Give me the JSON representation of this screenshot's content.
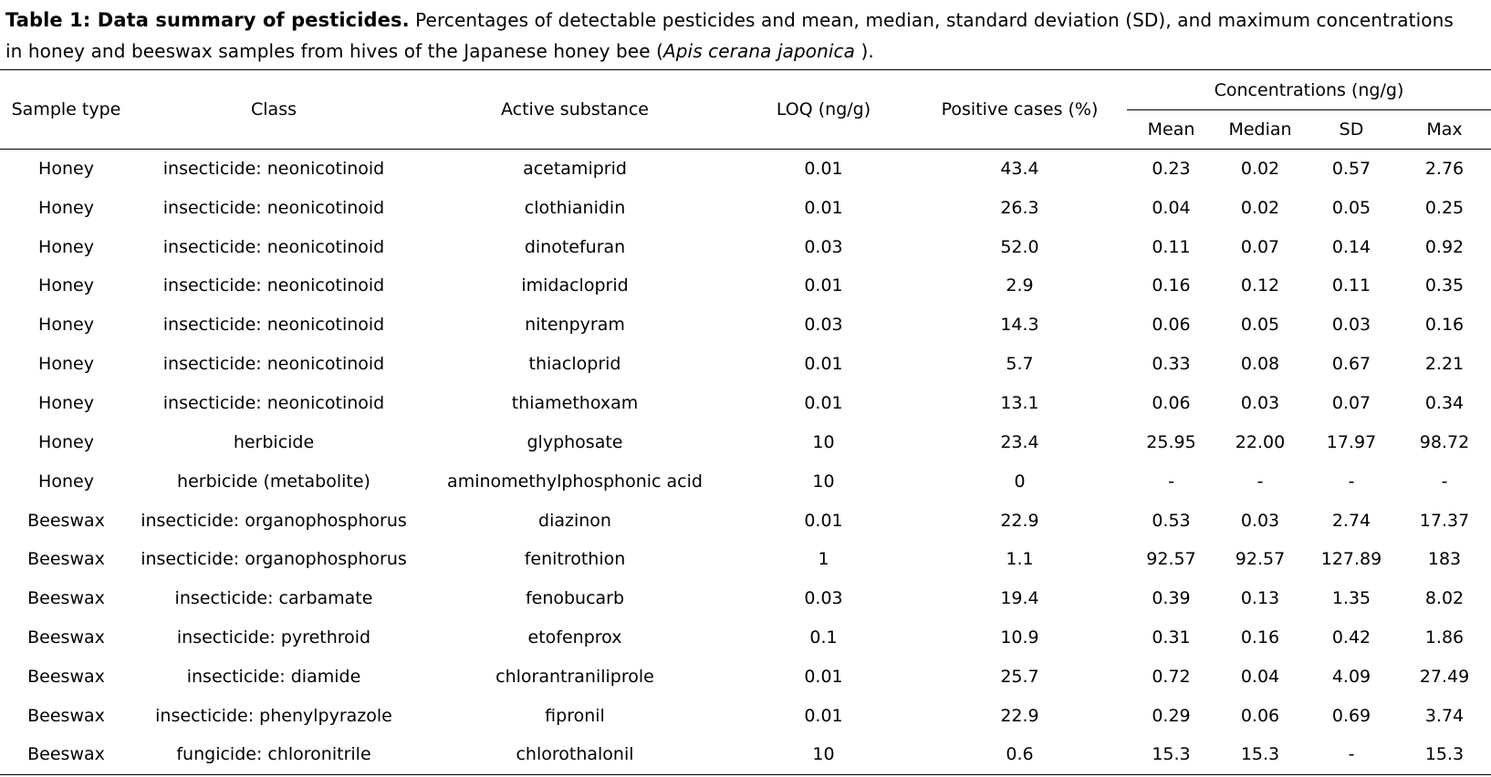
{
  "caption": {
    "title": "Table 1: Data summary of pesticides.",
    "line1_rest": " Percentages of detectable pesticides and mean, median, standard deviation (SD), and maximum concentrations",
    "line2_pre": "in honey and beeswax samples from hives of the Japanese honey bee (",
    "species": "Apis cerana japonica",
    "line2_post": " )."
  },
  "table": {
    "columns": {
      "sample_type": "Sample type",
      "class": "Class",
      "active_substance": "Active substance",
      "loq": "LOQ (ng/g)",
      "positive_cases": "Positive cases (%)"
    },
    "concentration_group": {
      "label": "Concentrations (ng/g)",
      "subcolumns": {
        "mean": "Mean",
        "median": "Median",
        "sd": "SD",
        "max": "Max"
      }
    },
    "rows": [
      [
        "Honey",
        "insecticide: neonicotinoid",
        "acetamiprid",
        "0.01",
        "43.4",
        "0.23",
        "0.02",
        "0.57",
        "2.76"
      ],
      [
        "Honey",
        "insecticide: neonicotinoid",
        "clothianidin",
        "0.01",
        "26.3",
        "0.04",
        "0.02",
        "0.05",
        "0.25"
      ],
      [
        "Honey",
        "insecticide: neonicotinoid",
        "dinotefuran",
        "0.03",
        "52.0",
        "0.11",
        "0.07",
        "0.14",
        "0.92"
      ],
      [
        "Honey",
        "insecticide: neonicotinoid",
        "imidacloprid",
        "0.01",
        "2.9",
        "0.16",
        "0.12",
        "0.11",
        "0.35"
      ],
      [
        "Honey",
        "insecticide: neonicotinoid",
        "nitenpyram",
        "0.03",
        "14.3",
        "0.06",
        "0.05",
        "0.03",
        "0.16"
      ],
      [
        "Honey",
        "insecticide: neonicotinoid",
        "thiacloprid",
        "0.01",
        "5.7",
        "0.33",
        "0.08",
        "0.67",
        "2.21"
      ],
      [
        "Honey",
        "insecticide: neonicotinoid",
        "thiamethoxam",
        "0.01",
        "13.1",
        "0.06",
        "0.03",
        "0.07",
        "0.34"
      ],
      [
        "Honey",
        "herbicide",
        "glyphosate",
        "10",
        "23.4",
        "25.95",
        "22.00",
        "17.97",
        "98.72"
      ],
      [
        "Honey",
        "herbicide (metabolite)",
        "aminomethylphosphonic acid",
        "10",
        "0",
        "-",
        "-",
        "-",
        "-"
      ],
      [
        "Beeswax",
        "insecticide: organophosphorus",
        "diazinon",
        "0.01",
        "22.9",
        "0.53",
        "0.03",
        "2.74",
        "17.37"
      ],
      [
        "Beeswax",
        "insecticide: organophosphorus",
        "fenitrothion",
        "1",
        "1.1",
        "92.57",
        "92.57",
        "127.89",
        "183"
      ],
      [
        "Beeswax",
        "insecticide: carbamate",
        "fenobucarb",
        "0.03",
        "19.4",
        "0.39",
        "0.13",
        "1.35",
        "8.02"
      ],
      [
        "Beeswax",
        "insecticide: pyrethroid",
        "etofenprox",
        "0.1",
        "10.9",
        "0.31",
        "0.16",
        "0.42",
        "1.86"
      ],
      [
        "Beeswax",
        "insecticide: diamide",
        "chlorantraniliprole",
        "0.01",
        "25.7",
        "0.72",
        "0.04",
        "4.09",
        "27.49"
      ],
      [
        "Beeswax",
        "insecticide: phenylpyrazole",
        "fipronil",
        "0.01",
        "22.9",
        "0.29",
        "0.06",
        "0.69",
        "3.74"
      ],
      [
        "Beeswax",
        "fungicide: chloronitrile",
        "chlorothalonil",
        "10",
        "0.6",
        "15.3",
        "15.3",
        "-",
        "15.3"
      ]
    ]
  }
}
